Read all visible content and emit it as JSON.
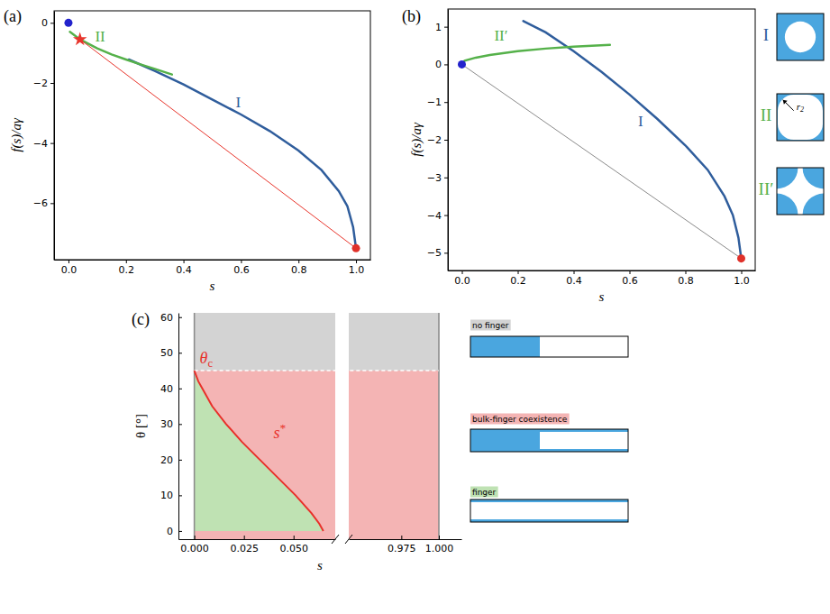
{
  "chart_data": [
    {
      "type": "line",
      "panel_label": "(a)",
      "xlabel": "s",
      "ylabel": "f(s)/aγ",
      "xlim": [
        -0.05,
        1.05
      ],
      "ylim": [
        -7.88,
        0.4
      ],
      "xticks": [
        {
          "value": 0,
          "label": "0.0"
        },
        {
          "value": 0.2,
          "label": "0.2"
        },
        {
          "value": 0.4,
          "label": "0.4"
        },
        {
          "value": 0.6,
          "label": "0.6"
        },
        {
          "value": 0.8,
          "label": "0.8"
        },
        {
          "value": 1,
          "label": "1.0"
        }
      ],
      "yticks": [
        0,
        {
          "value": -2,
          "label": "−2"
        },
        {
          "value": -4,
          "label": "−4"
        },
        {
          "value": -6,
          "label": "−6"
        }
      ],
      "series": [
        {
          "color": "#2f5d9c",
          "line_style": "thick",
          "x": [
            0.21,
            0.3,
            0.4,
            0.5,
            0.6,
            0.7,
            0.8,
            0.88,
            0.94,
            0.97,
            0.99,
            1.0
          ],
          "values": [
            -1.22,
            -1.6,
            -2.05,
            -2.55,
            -3.05,
            -3.6,
            -4.25,
            -4.9,
            -5.6,
            -6.1,
            -6.8,
            -7.5
          ]
        },
        {
          "color": "#55b14a",
          "line_style": "thick",
          "x": [
            0.005,
            0.04,
            0.1,
            0.15,
            0.2,
            0.25,
            0.3,
            0.36
          ],
          "values": [
            -0.3,
            -0.55,
            -0.85,
            -1.05,
            -1.22,
            -1.38,
            -1.53,
            -1.72
          ]
        },
        {
          "color": "#e8352c",
          "line_style": "thin",
          "x": [
            0.04,
            1.0
          ],
          "values": [
            -0.55,
            -7.5
          ]
        }
      ],
      "points": [
        {
          "x": 0,
          "y": 0,
          "color": "#2323cc",
          "marker": "circle"
        },
        {
          "x": 1,
          "y": -7.5,
          "color": "#e0312a",
          "marker": "circle"
        },
        {
          "x": 0.04,
          "y": -0.55,
          "color": "#e8352c",
          "marker": "star"
        }
      ],
      "annotations": [
        {
          "text": "I",
          "x": 0.59,
          "y": -2.7,
          "color": "#2f5d9c"
        },
        {
          "text": "II",
          "x": 0.11,
          "y": -0.5,
          "color": "#55b14a"
        }
      ]
    },
    {
      "type": "line",
      "panel_label": "(b)",
      "xlabel": "s",
      "ylabel": "f(s)/aγ",
      "xlim": [
        -0.05,
        1.05
      ],
      "ylim": [
        -5.47,
        1.47
      ],
      "xticks": [
        {
          "value": 0,
          "label": "0.0"
        },
        {
          "value": 0.2,
          "label": "0.2"
        },
        {
          "value": 0.4,
          "label": "0.4"
        },
        {
          "value": 0.6,
          "label": "0.6"
        },
        {
          "value": 0.8,
          "label": "0.8"
        },
        {
          "value": 1,
          "label": "1.0"
        }
      ],
      "yticks": [
        1,
        0,
        {
          "value": -1,
          "label": "−1"
        },
        {
          "value": -2,
          "label": "−2"
        },
        {
          "value": -3,
          "label": "−3"
        },
        {
          "value": -4,
          "label": "−4"
        },
        {
          "value": -5,
          "label": "−5"
        }
      ],
      "series": [
        {
          "color": "#2f5d9c",
          "line_style": "thick",
          "x": [
            0.22,
            0.3,
            0.4,
            0.5,
            0.6,
            0.7,
            0.8,
            0.88,
            0.94,
            0.97,
            0.99,
            1.0
          ],
          "values": [
            1.15,
            0.85,
            0.35,
            -0.2,
            -0.8,
            -1.45,
            -2.15,
            -2.8,
            -3.5,
            -4.0,
            -4.6,
            -5.15
          ]
        },
        {
          "color": "#55b14a",
          "line_style": "thick",
          "x": [
            0,
            0.01,
            0.05,
            0.1,
            0.2,
            0.3,
            0.4,
            0.53
          ],
          "values": [
            0,
            0.1,
            0.18,
            0.25,
            0.35,
            0.42,
            0.47,
            0.52
          ]
        },
        {
          "color": "#8a8a8a",
          "line_style": "thin",
          "x": [
            0,
            1.0
          ],
          "values": [
            0,
            -5.15
          ]
        }
      ],
      "points": [
        {
          "x": 0,
          "y": 0,
          "color": "#2323cc",
          "marker": "circle"
        },
        {
          "x": 1,
          "y": -5.15,
          "color": "#e0312a",
          "marker": "circle"
        }
      ],
      "annotations": [
        {
          "text": "II′",
          "x": 0.14,
          "y": 0.72,
          "color": "#55b14a"
        },
        {
          "text": "I",
          "x": 0.64,
          "y": -1.55,
          "color": "#2f5d9c"
        }
      ]
    },
    {
      "type": "area",
      "panel_label": "(c)",
      "xlabel": "s",
      "ylabel": "θ [°]",
      "xlim": [
        -0.008,
        1.015
      ],
      "x_break": [
        0.071,
        0.94
      ],
      "ylim": [
        -2.3,
        61.2
      ],
      "xticks": [
        {
          "value": 0,
          "label": "0.000"
        },
        {
          "value": 0.025,
          "label": "0.025"
        },
        {
          "value": 0.05,
          "label": "0.050"
        },
        {
          "value": 0.975,
          "label": "0.975"
        },
        {
          "value": 1,
          "label": "1.000"
        }
      ],
      "yticks": [
        0,
        10,
        20,
        30,
        40,
        50,
        60
      ],
      "theta_c": 45,
      "reference_lines_x": [
        0,
        1
      ],
      "series": [
        {
          "color": "#e8302a",
          "line_style": "thick",
          "x": [
            0,
            0.002,
            0.004,
            0.009,
            0.016,
            0.024,
            0.033,
            0.042,
            0.051,
            0.059,
            0.063,
            0.065
          ],
          "values": [
            45,
            42,
            40,
            35,
            30,
            25,
            20,
            15,
            10,
            5,
            2,
            0
          ]
        }
      ],
      "regions": [
        {
          "name": "no finger",
          "color": "#d3d3d3"
        },
        {
          "name": "bulk-finger coexistence",
          "color": "#f4b4b4"
        },
        {
          "name": "finger",
          "color": "#bfe2b3"
        }
      ],
      "annotations": [
        {
          "text": "s",
          "sup": "*",
          "x": 0.043,
          "y": 27,
          "color": "#e8302a"
        },
        {
          "text": "θ",
          "sub": "c",
          "x": 0.006,
          "y": 48,
          "color": "#e8302a"
        }
      ]
    }
  ],
  "schematics": {
    "color": "#4aa6df",
    "items": [
      {
        "label": "I",
        "color": "#2f5d9c"
      },
      {
        "label": "II",
        "color": "#55b14a",
        "radius_label": {
          "text": "r",
          "sub": "2"
        }
      },
      {
        "label": "II′",
        "color": "#55b14a"
      }
    ]
  }
}
